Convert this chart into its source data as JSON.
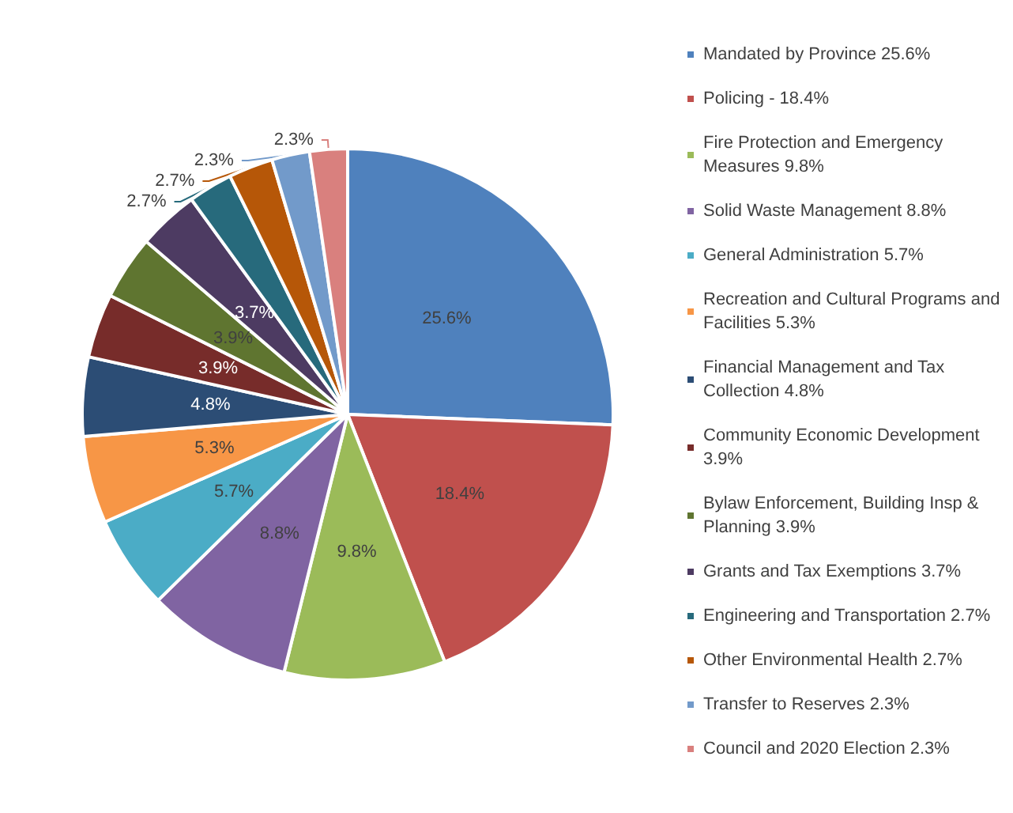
{
  "chart_data": {
    "type": "pie",
    "categories": [
      "Mandated by Province 25.6%",
      "Policing - 18.4%",
      "Fire Protection and Emergency Measures 9.8%",
      "Solid Waste Management 8.8%",
      "General Administration 5.7%",
      "Recreation and Cultural Programs and Facilities 5.3%",
      "Financial Management and Tax Collection 4.8%",
      "Community Economic Development 3.9%",
      "Bylaw Enforcement, Building Insp & Planning 3.9%",
      "Grants and Tax Exemptions 3.7%",
      "Engineering and Transportation 2.7%",
      "Other Environmental Health 2.7%",
      "Transfer to Reserves 2.3%",
      "Council and 2020 Election 2.3%"
    ],
    "values": [
      25.6,
      18.4,
      9.8,
      8.8,
      5.7,
      5.3,
      4.8,
      3.9,
      3.9,
      3.7,
      2.7,
      2.7,
      2.3,
      2.3
    ],
    "colors": [
      "#4f81bd",
      "#c0504d",
      "#9bbb59",
      "#8064a2",
      "#4bacc6",
      "#f79646",
      "#2c4d75",
      "#772c2a",
      "#5f7530",
      "#4d3b62",
      "#276a7c",
      "#b65708",
      "#729aca",
      "#d9807e"
    ],
    "value_labels": [
      "25.6%",
      "18.4%",
      "9.8%",
      "8.8%",
      "5.7%",
      "5.3%",
      "4.8%",
      "3.9%",
      "3.9%",
      "3.7%",
      "2.7%",
      "2.7%",
      "2.3%",
      "2.3%"
    ],
    "legend": "right"
  }
}
